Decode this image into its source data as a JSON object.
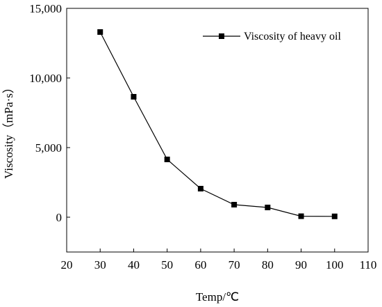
{
  "chart_data": {
    "type": "line",
    "title": "",
    "xlabel": "Temp/℃",
    "ylabel": "Viscosity（mPa·s）",
    "xlim": [
      20,
      110
    ],
    "ylim": [
      -2500,
      15000
    ],
    "x_ticks": [
      20,
      30,
      40,
      50,
      60,
      70,
      80,
      90,
      100,
      110
    ],
    "y_ticks": [
      0,
      5000,
      10000,
      15000
    ],
    "x_tick_labels": [
      "20",
      "30",
      "40",
      "50",
      "60",
      "70",
      "80",
      "90",
      "100",
      "110"
    ],
    "y_tick_labels": [
      "0",
      "5,000",
      "10,000",
      "15,000"
    ],
    "grid": false,
    "legend_position": "top-right",
    "series": [
      {
        "name": "Viscosity of heavy oil",
        "marker": "square",
        "color": "#000000",
        "x": [
          30,
          40,
          50,
          60,
          70,
          80,
          90,
          100
        ],
        "y": [
          13300,
          8650,
          4150,
          2050,
          900,
          700,
          70,
          60
        ]
      }
    ]
  }
}
